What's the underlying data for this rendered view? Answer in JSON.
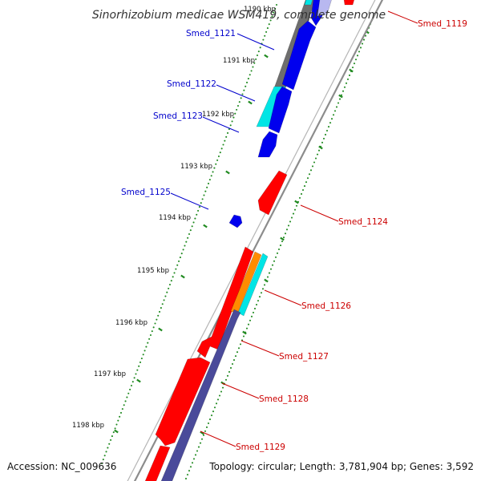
{
  "title": "Sinorhizobium medicae WSM419, complete genome",
  "footer": {
    "accession": "Accession: NC_009636",
    "topology": "Topology: circular; Length: 3,781,904 bp; Genes: 3,592"
  },
  "colors": {
    "red": "#ff0000",
    "blue": "#0000ee",
    "cyan": "#00e5e5",
    "orange": "#ff8c00",
    "slate": "#4a4a9a",
    "gray": "#6e6e6e",
    "backbone": "#8c8c8c",
    "tick": "#228b22",
    "forward_label": "#cc0000",
    "reverse_label": "#0000cc"
  },
  "kbp_ticks": [
    "1190 kbp",
    "1191 kbp",
    "1192 kbp",
    "1193 kbp",
    "1194 kbp",
    "1195 kbp",
    "1196 kbp",
    "1197 kbp",
    "1198 kbp"
  ],
  "gene_labels": [
    {
      "name": "Smed_1119",
      "strand": "forward"
    },
    {
      "name": "Smed_1121",
      "strand": "reverse"
    },
    {
      "name": "Smed_1122",
      "strand": "reverse"
    },
    {
      "name": "Smed_1123",
      "strand": "reverse"
    },
    {
      "name": "Smed_1124",
      "strand": "forward"
    },
    {
      "name": "Smed_1125",
      "strand": "reverse"
    },
    {
      "name": "Smed_1126",
      "strand": "forward"
    },
    {
      "name": "Smed_1127",
      "strand": "forward"
    },
    {
      "name": "Smed_1128",
      "strand": "forward"
    },
    {
      "name": "Smed_1129",
      "strand": "forward"
    }
  ]
}
